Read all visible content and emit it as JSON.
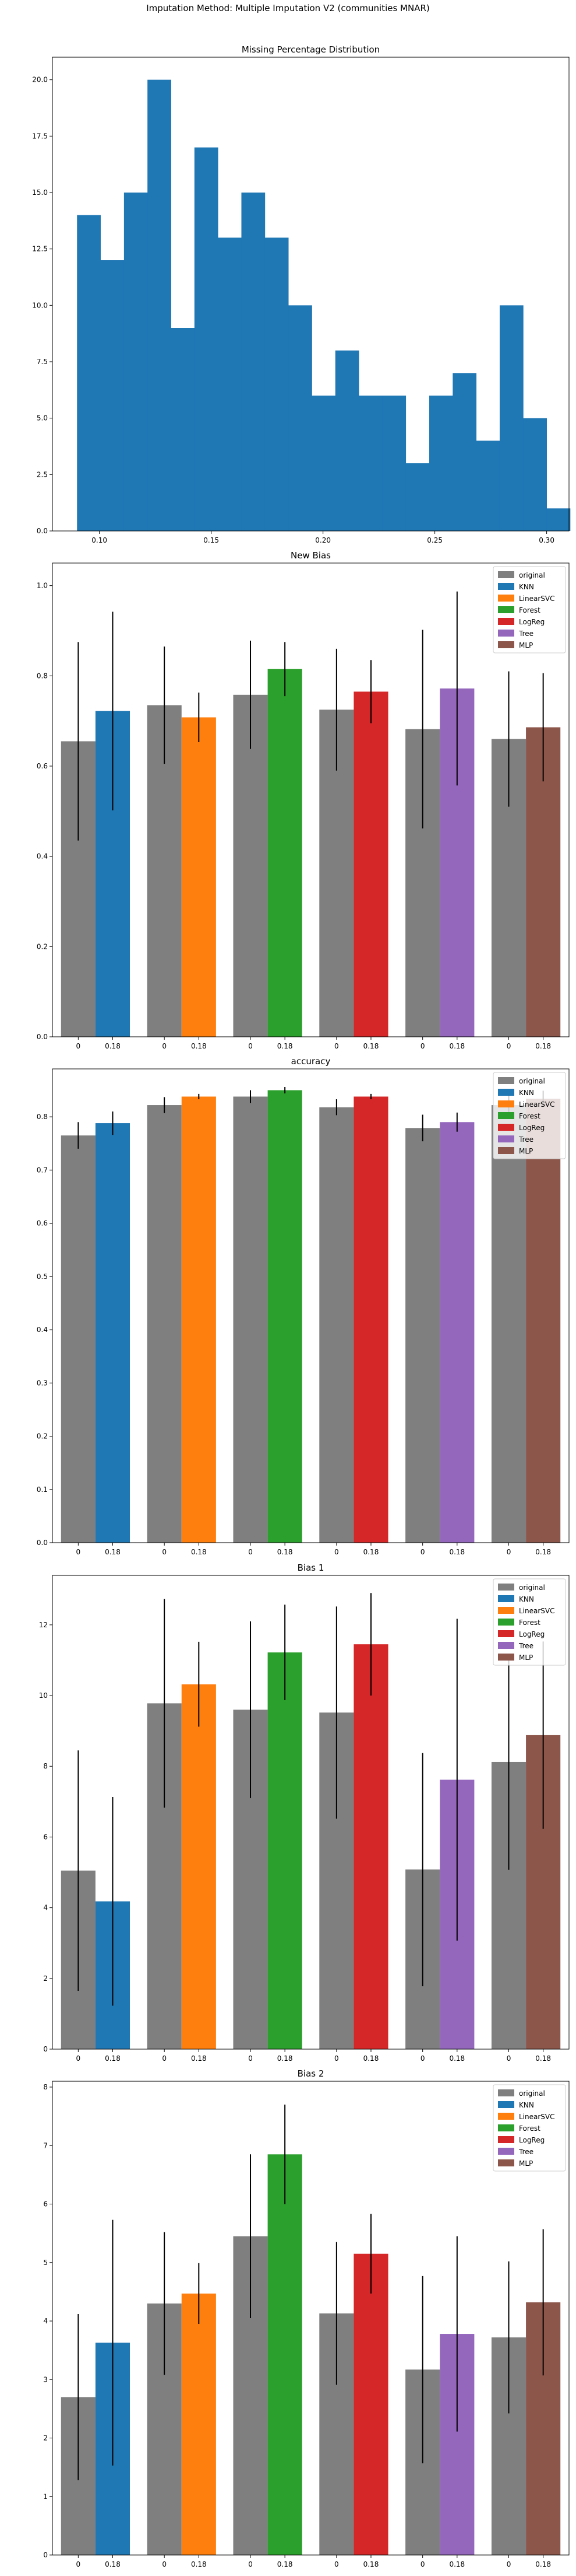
{
  "suptitle": "Imputation Method: Multiple Imputation V2 (communities MNAR)",
  "chart_data": [
    {
      "type": "bar",
      "kind": "histogram",
      "title": "Missing Percentage Distribution",
      "xlabel": "",
      "ylabel": "",
      "color": "#1f77b4",
      "bin_start": 0.09,
      "bin_width": 0.0105,
      "counts": [
        14,
        12,
        15,
        20,
        9,
        17,
        13,
        15,
        13,
        10,
        6,
        8,
        6,
        6,
        3,
        6,
        7,
        4,
        10,
        5,
        1
      ],
      "xlim": [
        0.079,
        0.31
      ],
      "ylim": [
        0,
        21
      ],
      "xticks": [
        0.1,
        0.15,
        0.2,
        0.25,
        0.3
      ],
      "xtick_labels": [
        "0.10",
        "0.15",
        "0.20",
        "0.25",
        "0.30"
      ],
      "yticks": [
        0.0,
        2.5,
        5.0,
        7.5,
        10.0,
        12.5,
        15.0,
        17.5,
        20.0
      ],
      "ytick_labels": [
        "0.0",
        "2.5",
        "5.0",
        "7.5",
        "10.0",
        "12.5",
        "15.0",
        "17.5",
        "20.0"
      ],
      "grid": false
    },
    {
      "type": "bar",
      "title": "New Bias",
      "xlabel": "",
      "ylabel": "",
      "groups": [
        "KNN",
        "LinearSVC",
        "Forest",
        "LogReg",
        "Tree",
        "MLP"
      ],
      "bar_labels": [
        "0",
        "0.18"
      ],
      "original": [
        0.655,
        0.735,
        0.758,
        0.725,
        0.682,
        0.66
      ],
      "original_err": [
        0.22,
        0.13,
        0.12,
        0.135,
        0.22,
        0.15
      ],
      "imputed": [
        0.722,
        0.708,
        0.815,
        0.765,
        0.772,
        0.686
      ],
      "imputed_err": [
        0.22,
        0.055,
        0.06,
        0.07,
        0.215,
        0.12
      ],
      "ylim": [
        0,
        1.05
      ],
      "yticks": [
        0.0,
        0.2,
        0.4,
        0.6,
        0.8,
        1.0
      ],
      "ytick_labels": [
        "0.0",
        "0.2",
        "0.4",
        "0.6",
        "0.8",
        "1.0"
      ],
      "legend_position": "top-right",
      "grid": false
    },
    {
      "type": "bar",
      "title": "accuracy",
      "xlabel": "",
      "ylabel": "",
      "groups": [
        "KNN",
        "LinearSVC",
        "Forest",
        "LogReg",
        "Tree",
        "MLP"
      ],
      "bar_labels": [
        "0",
        "0.18"
      ],
      "original": [
        0.765,
        0.822,
        0.838,
        0.818,
        0.779,
        0.822
      ],
      "original_err": [
        0.025,
        0.015,
        0.012,
        0.015,
        0.025,
        0.02
      ],
      "imputed": [
        0.788,
        0.838,
        0.85,
        0.838,
        0.79,
        0.834
      ],
      "imputed_err": [
        0.022,
        0.005,
        0.006,
        0.005,
        0.018,
        0.015
      ],
      "ylim": [
        0,
        0.89
      ],
      "yticks": [
        0.0,
        0.1,
        0.2,
        0.3,
        0.4,
        0.5,
        0.6,
        0.7,
        0.8
      ],
      "ytick_labels": [
        "0.0",
        "0.1",
        "0.2",
        "0.3",
        "0.4",
        "0.5",
        "0.6",
        "0.7",
        "0.8"
      ],
      "legend_position": "top-right",
      "grid": false
    },
    {
      "type": "bar",
      "title": "Bias 1",
      "xlabel": "",
      "ylabel": "",
      "groups": [
        "KNN",
        "LinearSVC",
        "Forest",
        "LogReg",
        "Tree",
        "MLP"
      ],
      "bar_labels": [
        "0",
        "0.18"
      ],
      "original": [
        5.05,
        9.78,
        9.6,
        9.52,
        5.08,
        8.12
      ],
      "original_err": [
        3.4,
        2.95,
        2.5,
        3.0,
        3.3,
        3.05
      ],
      "imputed": [
        4.18,
        10.32,
        11.22,
        11.45,
        7.62,
        8.88
      ],
      "imputed_err": [
        2.95,
        1.2,
        1.35,
        1.45,
        4.55,
        2.65
      ],
      "ylim": [
        0,
        13.4
      ],
      "yticks": [
        0,
        2,
        4,
        6,
        8,
        10,
        12
      ],
      "ytick_labels": [
        "0",
        "2",
        "4",
        "6",
        "8",
        "10",
        "12"
      ],
      "legend_position": "top-right",
      "grid": false
    },
    {
      "type": "bar",
      "title": "Bias 2",
      "xlabel": "",
      "ylabel": "",
      "groups": [
        "KNN",
        "LinearSVC",
        "Forest",
        "LogReg",
        "Tree",
        "MLP"
      ],
      "bar_labels": [
        "0",
        "0.18"
      ],
      "original": [
        2.7,
        4.3,
        5.45,
        4.13,
        3.17,
        3.72
      ],
      "original_err": [
        1.42,
        1.22,
        1.4,
        1.22,
        1.6,
        1.3
      ],
      "imputed": [
        3.63,
        4.47,
        6.85,
        5.15,
        3.78,
        4.32
      ],
      "imputed_err": [
        2.1,
        0.52,
        0.85,
        0.68,
        1.67,
        1.25
      ],
      "ylim": [
        0,
        8.1
      ],
      "yticks": [
        0,
        1,
        2,
        3,
        4,
        5,
        6,
        7,
        8
      ],
      "ytick_labels": [
        "0",
        "1",
        "2",
        "3",
        "4",
        "5",
        "6",
        "7",
        "8"
      ],
      "legend_position": "top-right",
      "grid": false
    }
  ],
  "legend": {
    "entries": [
      "original",
      "KNN",
      "LinearSVC",
      "Forest",
      "LogReg",
      "Tree",
      "MLP"
    ],
    "colors": [
      "#7f7f7f",
      "#1f77b4",
      "#ff7f0e",
      "#2ca02c",
      "#d62728",
      "#9467bd",
      "#8c564b"
    ]
  },
  "colors": {
    "original": "#7f7f7f",
    "errorbar": "#000000"
  }
}
